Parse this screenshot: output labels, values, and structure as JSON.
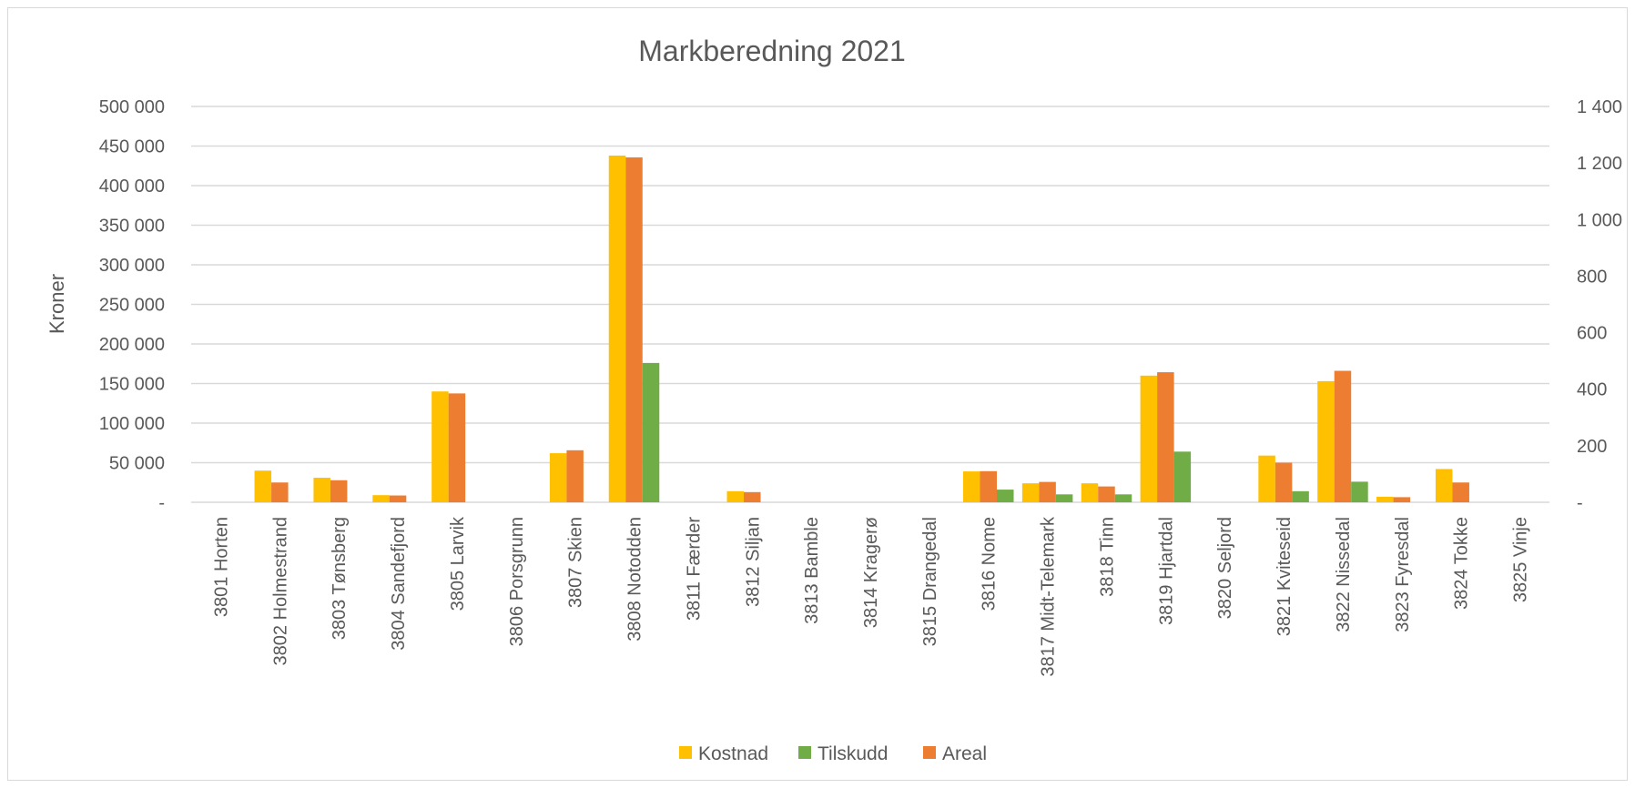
{
  "chart_data": {
    "type": "bar",
    "title": "Markberedning 2021",
    "ylabel": "Kroner",
    "y_axis": {
      "range": [
        0,
        500000
      ],
      "tick_values": [
        0,
        50000,
        100000,
        150000,
        200000,
        250000,
        300000,
        350000,
        400000,
        450000,
        500000
      ],
      "tick_labels": [
        "-",
        "50 000",
        "100 000",
        "150 000",
        "200 000",
        "250 000",
        "300 000",
        "350 000",
        "400 000",
        "450 000",
        "500 000"
      ]
    },
    "y2_axis": {
      "range": [
        0,
        1400
      ],
      "tick_values": [
        0,
        200,
        400,
        600,
        800,
        1000,
        1200,
        1400
      ],
      "tick_labels": [
        "-",
        "200",
        "400",
        "600",
        "800",
        "1 000",
        "1 200",
        "1 400"
      ]
    },
    "grid": true,
    "legend_position": "bottom",
    "categories": [
      "3801 Horten",
      "3802 Holmestrand",
      "3803 Tønsberg",
      "3804 Sandefjord",
      "3805 Larvik",
      "3806 Porsgrunn",
      "3807 Skien",
      "3808 Notodden",
      "3811 Færder",
      "3812 Siljan",
      "3813 Bamble",
      "3814 Kragerø",
      "3815 Drangedal",
      "3816 Nome",
      "3817 Midt-Telemark",
      "3818 Tinn",
      "3819 Hjartdal",
      "3820 Seljord",
      "3821 Kviteseid",
      "3822 Nissedal",
      "3823 Fyresdal",
      "3824 Tokke",
      "3825 Vinje"
    ],
    "series": [
      {
        "name": "Kostnad",
        "axis": "primary",
        "color": "#FFC000",
        "values": [
          0,
          40000,
          31000,
          9000,
          140000,
          0,
          62000,
          438000,
          0,
          14000,
          0,
          0,
          0,
          39000,
          24000,
          24000,
          160000,
          0,
          59000,
          153000,
          7000,
          42000,
          0
        ]
      },
      {
        "name": "Tilskudd",
        "axis": "primary",
        "color": "#70AD47",
        "values": [
          0,
          0,
          0,
          0,
          0,
          0,
          0,
          176000,
          0,
          0,
          0,
          0,
          0,
          16000,
          10000,
          10000,
          64000,
          0,
          14000,
          26000,
          0,
          0,
          0
        ]
      },
      {
        "name": "Areal",
        "axis": "secondary",
        "color": "#ED7D31",
        "values": [
          0,
          70,
          78,
          24,
          385,
          0,
          184,
          1220,
          0,
          36,
          0,
          0,
          0,
          110,
          72,
          56,
          460,
          0,
          140,
          465,
          18,
          70,
          0
        ]
      }
    ]
  }
}
